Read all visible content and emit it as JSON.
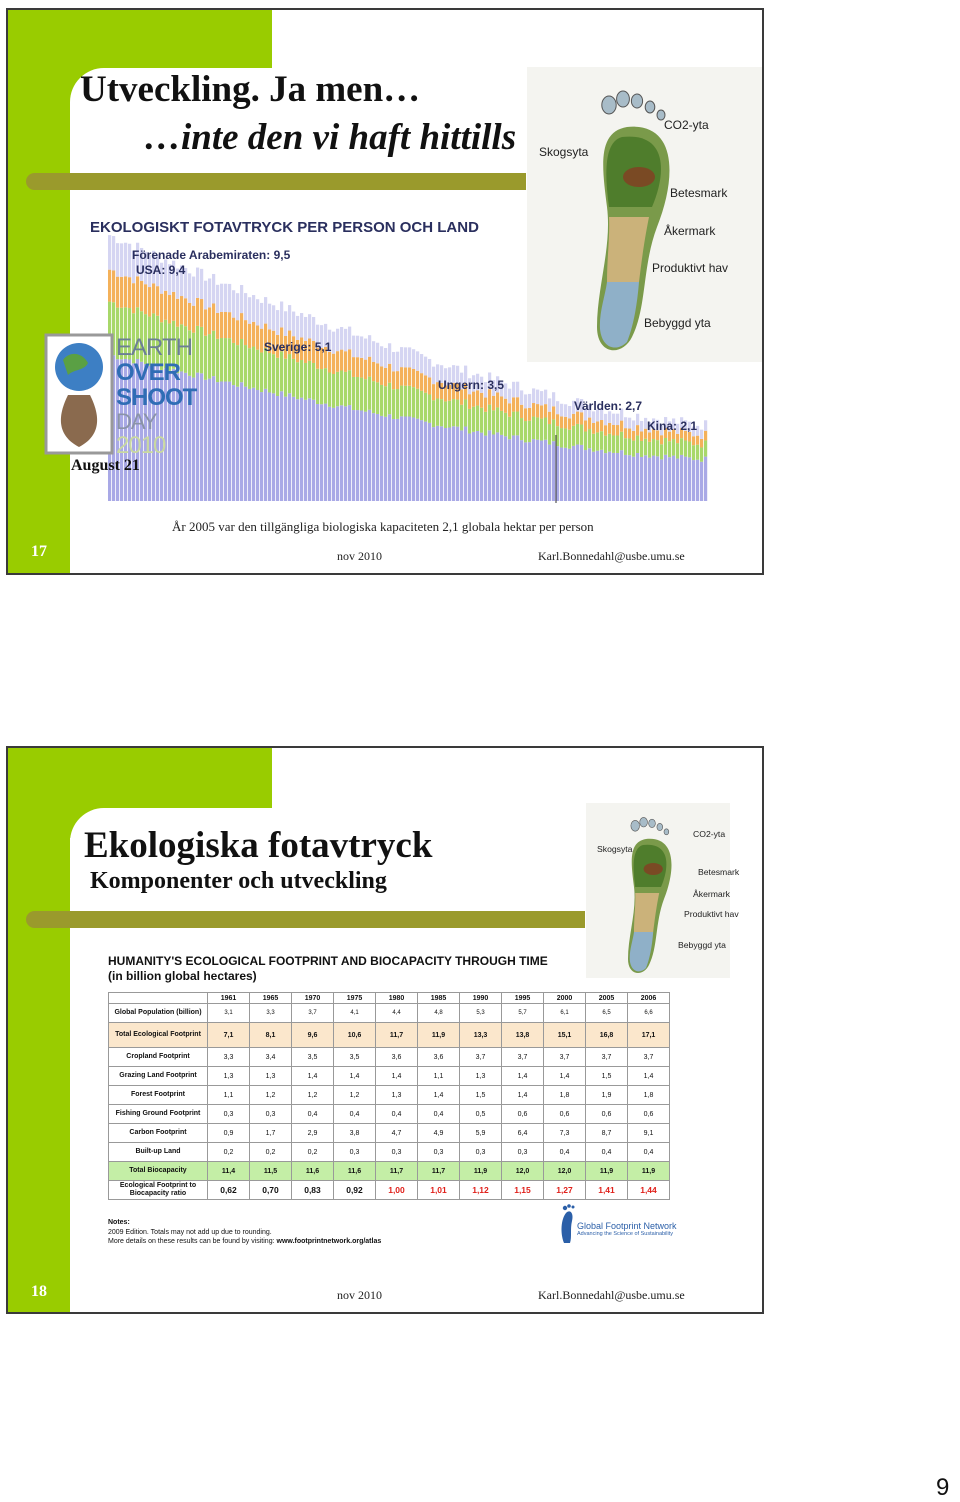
{
  "slides": [
    {
      "title_line1": "Utveckling. Ja men…",
      "title_line2": "…inte den vi haft hittills",
      "chart_image": {
        "title": "EKOLOGISKT FOTAVTRYCK PER PERSON OCH LAND",
        "labels": [
          "Förenade Arabemiraten: 9,5",
          "USA: 9,4",
          "Sverige: 5,1",
          "Ungern: 3,5",
          "Världen: 2,7",
          "Kina: 2,1"
        ]
      },
      "footprint_labels": [
        "CO2-yta",
        "Skogsyta",
        "Betesmark",
        "Åkermark",
        "Produktivt hav",
        "Bebyggd yta"
      ],
      "logo_lines": [
        "EARTH",
        "OVER",
        "SHOOT",
        "DAY",
        "2010"
      ],
      "logo_date": "August 21",
      "caption": "År 2005 var den tillgängliga biologiska kapaciteten 2,1 globala hektar per person",
      "number": "17",
      "footer_date": "nov 2010",
      "footer_email": "Karl.Bonnedahl@usbe.umu.se"
    },
    {
      "title": "Ekologiska fotavtryck",
      "subtitle": "Komponenter och utveckling",
      "footprint_labels": [
        "Skogsyta",
        "CO2-yta",
        "Betesmark",
        "Åkermark",
        "Produktivt hav",
        "Bebyggd yta"
      ],
      "table": {
        "title": "HUMANITY'S ECOLOGICAL FOOTPRINT AND BIOCAPACITY THROUGH TIME",
        "subtitle": "(in billion global hectares)",
        "columns": [
          "1961",
          "1965",
          "1970",
          "1975",
          "1980",
          "1985",
          "1990",
          "1995",
          "2000",
          "2005",
          "2006"
        ],
        "rows": [
          {
            "label": "Global Population (billion)",
            "cells": [
              "3,1",
              "3,3",
              "3,7",
              "4,1",
              "4,4",
              "4,8",
              "5,3",
              "5,7",
              "6,1",
              "6,5",
              "6,6"
            ]
          },
          {
            "label": "Total Ecological Footprint",
            "cells": [
              "7,1",
              "8,1",
              "9,6",
              "10,6",
              "11,7",
              "11,9",
              "13,3",
              "13,8",
              "15,1",
              "16,8",
              "17,1"
            ]
          },
          {
            "label": "Cropland Footprint",
            "cells": [
              "3,3",
              "3,4",
              "3,5",
              "3,5",
              "3,6",
              "3,6",
              "3,7",
              "3,7",
              "3,7",
              "3,7",
              "3,7"
            ]
          },
          {
            "label": "Grazing Land Footprint",
            "cells": [
              "1,3",
              "1,3",
              "1,4",
              "1,4",
              "1,4",
              "1,1",
              "1,3",
              "1,4",
              "1,4",
              "1,5",
              "1,4"
            ]
          },
          {
            "label": "Forest Footprint",
            "cells": [
              "1,1",
              "1,2",
              "1,2",
              "1,2",
              "1,3",
              "1,4",
              "1,5",
              "1,4",
              "1,8",
              "1,9",
              "1,8"
            ]
          },
          {
            "label": "Fishing Ground Footprint",
            "cells": [
              "0,3",
              "0,3",
              "0,4",
              "0,4",
              "0,4",
              "0,4",
              "0,5",
              "0,6",
              "0,6",
              "0,6",
              "0,6"
            ]
          },
          {
            "label": "Carbon Footprint",
            "cells": [
              "0,9",
              "1,7",
              "2,9",
              "3,8",
              "4,7",
              "4,9",
              "5,9",
              "6,4",
              "7,3",
              "8,7",
              "9,1"
            ]
          },
          {
            "label": "Built-up Land",
            "cells": [
              "0,2",
              "0,2",
              "0,2",
              "0,3",
              "0,3",
              "0,3",
              "0,3",
              "0,3",
              "0,4",
              "0,4",
              "0,4"
            ]
          },
          {
            "label": "Total Biocapacity",
            "cells": [
              "11,4",
              "11,5",
              "11,6",
              "11,6",
              "11,7",
              "11,7",
              "11,9",
              "12,0",
              "12,0",
              "11,9",
              "11,9"
            ]
          },
          {
            "label": "Ecological Footprint to Biocapacity ratio",
            "cells": [
              "0,62",
              "0,70",
              "0,83",
              "0,92",
              "1,00",
              "1,01",
              "1,12",
              "1,15",
              "1,27",
              "1,41",
              "1,44"
            ]
          }
        ]
      },
      "notes_heading": "Notes:",
      "notes_line1": "2009 Edition. Totals may not add up due to rounding.",
      "notes_line2": "More details on these results can be found by visiting:",
      "notes_link": "www.footprintnetwork.org/atlas",
      "logo_name": "Global Footprint Network",
      "logo_tagline": "Advancing the Science of Sustainability",
      "number": "18",
      "footer_date": "nov 2010",
      "footer_email": "Karl.Bonnedahl@usbe.umu.se"
    }
  ],
  "page_number": "9"
}
